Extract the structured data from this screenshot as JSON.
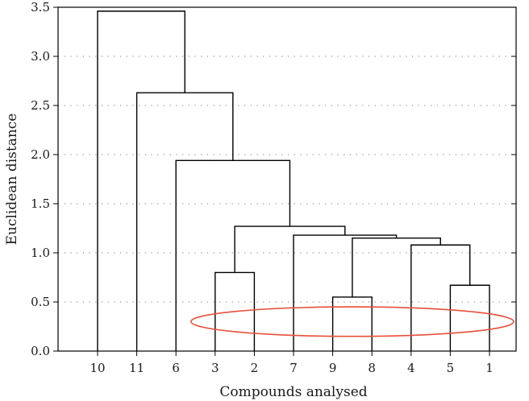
{
  "chart_data": {
    "type": "dendrogram",
    "xlabel": "Compounds analysed",
    "ylabel": "Euclidean distance",
    "ylim": [
      0,
      3.5
    ],
    "y_ticks": [
      0.0,
      0.5,
      1.0,
      1.5,
      2.0,
      2.5,
      3.0,
      3.5
    ],
    "y_tick_labels": [
      "0.0",
      "0.5",
      "1.0",
      "1.5",
      "2.0",
      "2.5",
      "3.0",
      "3.5"
    ],
    "leaf_order": [
      "10",
      "11",
      "6",
      "3",
      "2",
      "7",
      "9",
      "8",
      "4",
      "5",
      "1"
    ],
    "horizontal_grid": true,
    "merges": [
      {
        "left": [
          "5"
        ],
        "right": [
          "1"
        ],
        "height": 0.67
      },
      {
        "left": [
          "3"
        ],
        "right": [
          "2"
        ],
        "height": 0.8
      },
      {
        "left": [
          "9"
        ],
        "right": [
          "8"
        ],
        "height": 0.55
      },
      {
        "left": [
          "4"
        ],
        "right": [
          "5",
          "1"
        ],
        "height": 1.08
      },
      {
        "left": [
          "9",
          "8"
        ],
        "right": [
          "4",
          "5",
          "1"
        ],
        "height": 1.15
      },
      {
        "left": [
          "7"
        ],
        "right": [
          "9",
          "8",
          "4",
          "5",
          "1"
        ],
        "height": 1.18
      },
      {
        "left": [
          "3",
          "2"
        ],
        "right": [
          "7",
          "9",
          "8",
          "4",
          "5",
          "1"
        ],
        "height": 1.27
      },
      {
        "left": [
          "6"
        ],
        "right": [
          "3",
          "2",
          "7",
          "9",
          "8",
          "4",
          "5",
          "1"
        ],
        "height": 1.94
      },
      {
        "left": [
          "11"
        ],
        "right": [
          "6",
          "3",
          "2",
          "7",
          "9",
          "8",
          "4",
          "5",
          "1"
        ],
        "height": 2.63
      },
      {
        "left": [
          "10"
        ],
        "right": [
          "11",
          "6",
          "3",
          "2",
          "7",
          "9",
          "8",
          "4",
          "5",
          "1"
        ],
        "height": 3.46
      }
    ],
    "highlight_ellipse": {
      "around_leaves": [
        "3",
        "2",
        "7",
        "9",
        "8",
        "4",
        "5",
        "1"
      ],
      "y_center": 0.3,
      "y_half_height": 0.15,
      "color": "#e8503a"
    }
  }
}
